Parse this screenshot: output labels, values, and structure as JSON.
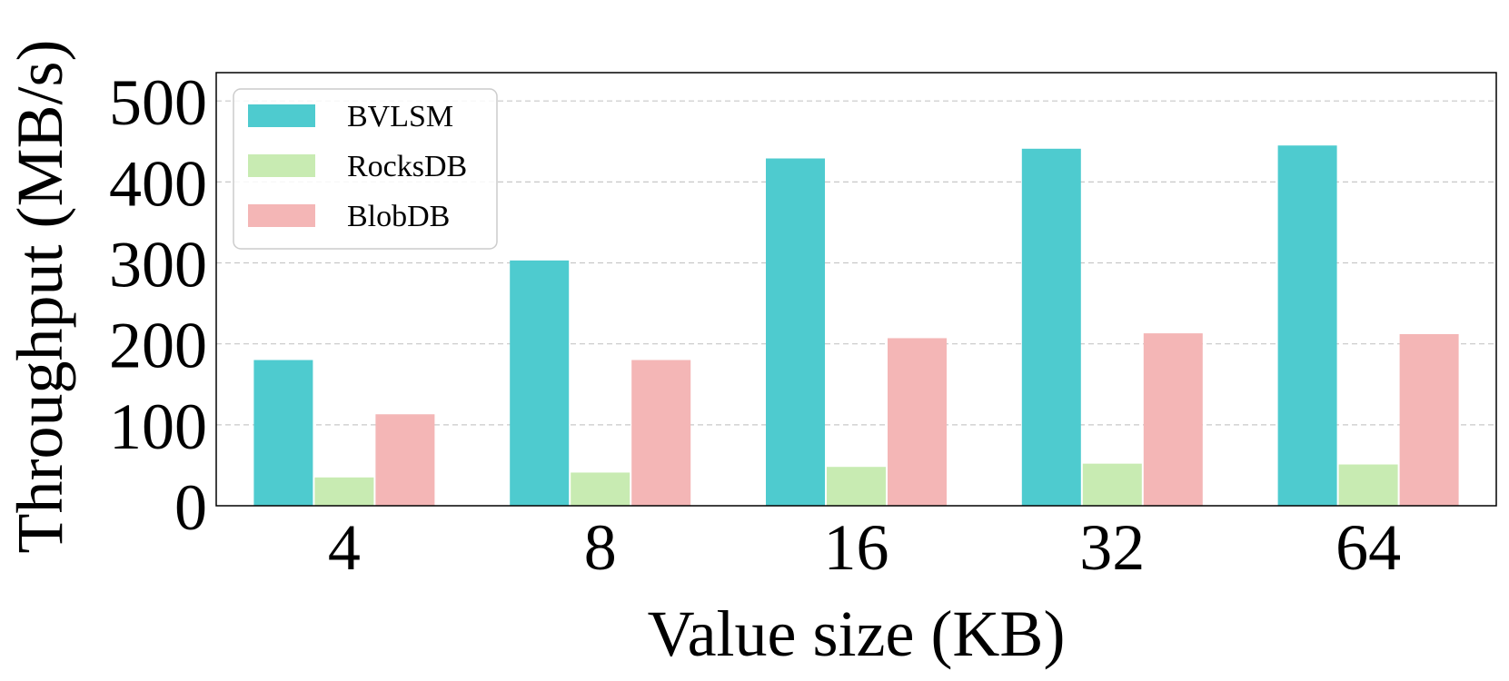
{
  "chart_data": {
    "type": "bar",
    "title": "",
    "xlabel": "Value size (KB)",
    "ylabel": "Throughput (MB/s)",
    "categories": [
      "4",
      "8",
      "16",
      "32",
      "64"
    ],
    "yticks": [
      0,
      100,
      200,
      300,
      400,
      500
    ],
    "ylim": [
      0,
      535
    ],
    "grid": "y dashed",
    "legend_position": "top-left",
    "series": [
      {
        "name": "BVLSM",
        "color": "#4ecbcf",
        "values": [
          180,
          303,
          429,
          441,
          445
        ]
      },
      {
        "name": "RocksDB",
        "color": "#c8ebb2",
        "values": [
          35,
          41,
          48,
          52,
          51
        ]
      },
      {
        "name": "BlobDB",
        "color": "#f4b6b6",
        "values": [
          113,
          180,
          207,
          213,
          212
        ]
      }
    ]
  }
}
